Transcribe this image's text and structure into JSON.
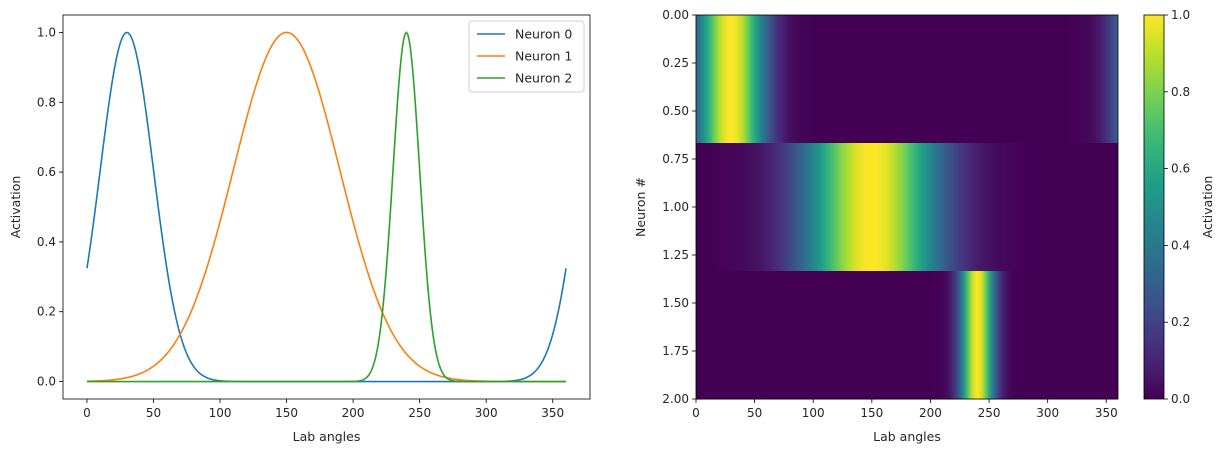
{
  "chart_data": [
    {
      "type": "line",
      "title": "",
      "xlabel": "Lab angles",
      "ylabel": "Activation",
      "xlim": [
        -18,
        378
      ],
      "ylim": [
        -0.05,
        1.05
      ],
      "xticks": [
        "0",
        "50",
        "100",
        "150",
        "200",
        "250",
        "300",
        "350"
      ],
      "yticks": [
        "0.0",
        "0.2",
        "0.4",
        "0.6",
        "0.8",
        "1.0"
      ],
      "grid": false,
      "legend": "top-right",
      "series": [
        {
          "name": "Neuron 0",
          "color": "#1f77b4",
          "peak_angle": 30,
          "sigma": 20,
          "circular": true,
          "points": [
            [
              0,
              0.32
            ],
            [
              30,
              1.0
            ],
            [
              50,
              0.61
            ],
            [
              70,
              0.17
            ],
            [
              100,
              0.005
            ],
            [
              150,
              0.0
            ],
            [
              300,
              0.0
            ],
            [
              330,
              0.04
            ],
            [
              345,
              0.1
            ],
            [
              360,
              0.32
            ]
          ]
        },
        {
          "name": "Neuron 1",
          "color": "#ff7f0e",
          "peak_angle": 150,
          "sigma": 40,
          "circular": false,
          "points": [
            [
              0,
              0.001
            ],
            [
              50,
              0.04
            ],
            [
              100,
              0.46
            ],
            [
              150,
              1.0
            ],
            [
              200,
              0.46
            ],
            [
              250,
              0.04
            ],
            [
              300,
              0.001
            ],
            [
              360,
              0.0
            ]
          ]
        },
        {
          "name": "Neuron 2",
          "color": "#2ca02c",
          "peak_angle": 240,
          "sigma": 10,
          "circular": false,
          "points": [
            [
              0,
              0.0
            ],
            [
              200,
              0.0
            ],
            [
              220,
              0.14
            ],
            [
              240,
              1.0
            ],
            [
              260,
              0.14
            ],
            [
              280,
              0.0
            ],
            [
              360,
              0.0
            ]
          ]
        }
      ]
    },
    {
      "type": "heatmap",
      "title": "",
      "xlabel": "Lab angles",
      "ylabel": "Neuron #",
      "xlim": [
        0,
        360
      ],
      "ylim": [
        2.0,
        0.0
      ],
      "xticks": [
        "0",
        "50",
        "100",
        "150",
        "200",
        "250",
        "300",
        "350"
      ],
      "yticks": [
        "0.00",
        "0.25",
        "0.50",
        "0.75",
        "1.00",
        "1.25",
        "1.50",
        "1.75",
        "2.00"
      ],
      "rows": [
        "Neuron 0",
        "Neuron 1",
        "Neuron 2"
      ],
      "colorbar": {
        "label": "Activation",
        "range": [
          0,
          1
        ],
        "ticks": [
          "0.0",
          "0.2",
          "0.4",
          "0.6",
          "0.8",
          "1.0"
        ],
        "colormap": "viridis"
      }
    }
  ]
}
